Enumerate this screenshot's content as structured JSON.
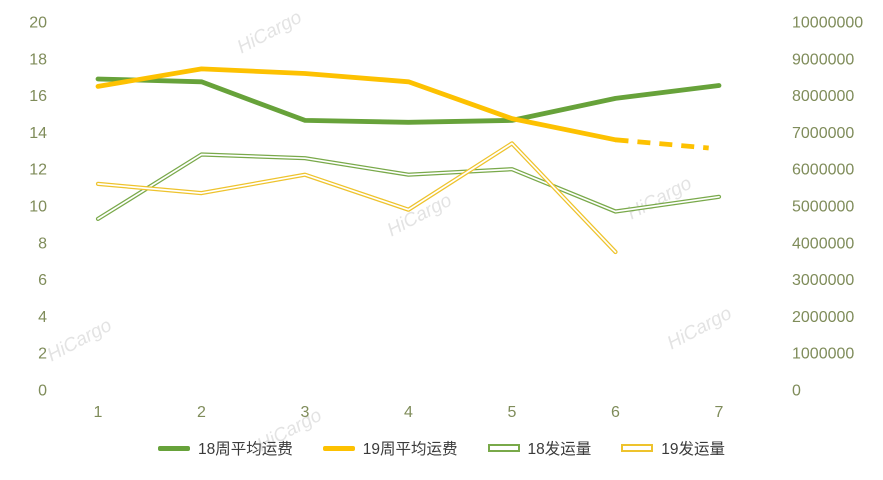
{
  "watermark": {
    "text": "HiCargo"
  },
  "chart_data": {
    "type": "line",
    "title": "",
    "xlabel": "",
    "ylabel_left": "",
    "ylabel_right": "",
    "grid": false,
    "legend_position": "bottom",
    "x": [
      1,
      2,
      3,
      4,
      5,
      6,
      7
    ],
    "left_axis": {
      "min": 0,
      "max": 20,
      "ticks": [
        0,
        2,
        4,
        6,
        8,
        10,
        12,
        14,
        16,
        18,
        20
      ]
    },
    "right_axis": {
      "min": 0,
      "max": 10000000,
      "ticks": [
        0,
        1000000,
        2000000,
        3000000,
        4000000,
        5000000,
        6000000,
        7000000,
        8000000,
        9000000,
        10000000
      ]
    },
    "series": [
      {
        "name": "18周平均运费",
        "axis": "left",
        "style": "thick",
        "color": "#67a23a",
        "values": [
          16.9,
          16.75,
          14.65,
          14.55,
          14.65,
          15.85,
          16.55
        ]
      },
      {
        "name": "19周平均运费",
        "axis": "left",
        "style": "thick",
        "color": "#fdc101",
        "values": [
          16.5,
          17.45,
          17.2,
          16.75,
          14.75,
          13.6
        ],
        "dashed": [
          [
            6,
            13.6
          ],
          [
            6.9,
            13.15
          ]
        ]
      },
      {
        "name": "18发运量",
        "axis": "right",
        "style": "outlined",
        "color": "#79a94a",
        "values": [
          4650000,
          6400000,
          6300000,
          5850000,
          6000000,
          4850000,
          5250000
        ]
      },
      {
        "name": "19发运量",
        "axis": "right",
        "style": "outlined",
        "color": "#eec32d",
        "values": [
          5600000,
          5350000,
          5850000,
          4900000,
          6700000,
          3750000
        ]
      }
    ]
  }
}
